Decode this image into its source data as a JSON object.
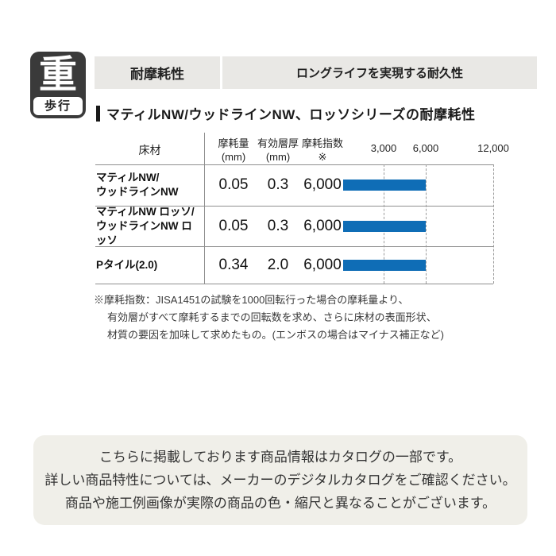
{
  "icon": {
    "kanji": "重",
    "label": "歩行"
  },
  "header": {
    "left": "耐摩耗性",
    "right": "ロングライフを実現する耐久性",
    "bg": "#e9e8e5"
  },
  "section_title": "マティルNW/ウッドラインNW、ロッソシリーズの耐摩耗性",
  "table": {
    "col_material": "床材",
    "col_wear": "摩耗量\n(mm)",
    "col_layer": "有効層厚\n(mm)",
    "col_index": "摩耗指数\n※",
    "rows": [
      {
        "material": "マティルNW/\nウッドラインNW",
        "wear": "0.05",
        "layer": "0.3",
        "index": "6,000"
      },
      {
        "material": "マティルNW ロッソ/\nウッドラインNW ロッソ",
        "wear": "0.05",
        "layer": "0.3",
        "index": "6,000"
      },
      {
        "material": "Pタイル(2.0)",
        "wear": "0.34",
        "layer": "2.0",
        "index": "6,000"
      }
    ]
  },
  "chart_data": {
    "type": "bar",
    "orientation": "horizontal",
    "title": "マティルNW/ウッドラインNW、ロッソシリーズの耐摩耗性",
    "categories": [
      "マティルNW/ウッドラインNW",
      "マティルNW ロッソ/ウッドラインNW ロッソ",
      "Pタイル(2.0)"
    ],
    "values": [
      6000,
      6000,
      6000
    ],
    "ticks": [
      3000,
      6000,
      12000
    ],
    "tick_labels": [
      "3,000",
      "6,000",
      "12,000"
    ],
    "xlim": [
      0,
      12000
    ],
    "bar_color": "#0f6db6",
    "grid": "dashed-vertical",
    "legend": "none"
  },
  "footnote": "※摩耗指数：JISA1451の試験を1000回転行った場合の摩耗量より、\n有効層がすべて摩耗するまでの回転数を求め、さらに床材の表面形状、\n材質の要因を加味して求めたもの。(エンボスの場合はマイナス補正など)",
  "notice": {
    "line1": "こちらに掲載しております商品情報はカタログの一部です。",
    "line2": "詳しい商品特性については、メーカーのデジタルカタログをご確認ください。",
    "line3": "商品や施工例画像が実際の商品の色・縮尺と異なることがございます。"
  }
}
